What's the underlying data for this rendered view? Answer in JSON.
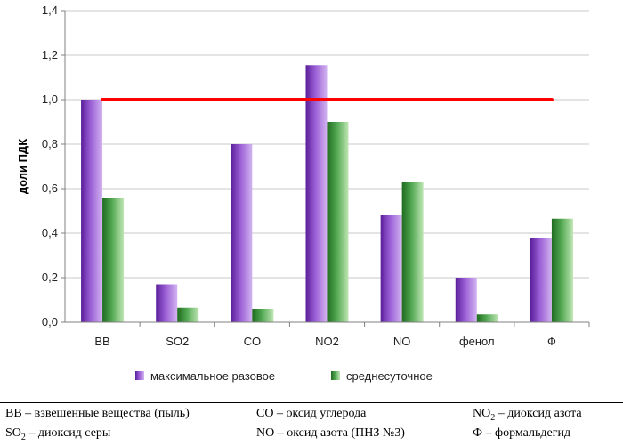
{
  "chart_data": {
    "type": "bar",
    "title": "",
    "xlabel": "",
    "ylabel": "доли ПДК",
    "ylim": [
      0,
      1.4
    ],
    "yticks": [
      "0,0",
      "0,2",
      "0,4",
      "0,6",
      "0,8",
      "1,0",
      "1,2",
      "1,4"
    ],
    "grid": "horizontal",
    "legend": "bottom",
    "categories": [
      "ВВ",
      "SO2",
      "CO",
      "NO2",
      "NO",
      "фенол",
      "Ф"
    ],
    "series": [
      {
        "name": "максимальное разовое",
        "values": [
          1.0,
          0.17,
          0.8,
          1.155,
          0.48,
          0.2,
          0.38
        ],
        "color": "#8040c0"
      },
      {
        "name": "среднесуточное",
        "values": [
          0.56,
          0.065,
          0.06,
          0.9,
          0.63,
          0.035,
          0.465
        ],
        "color": "#2e8b2e"
      }
    ],
    "reference_line": {
      "value": 1.0,
      "color": "#ff0000"
    }
  },
  "footnotes": {
    "row1": {
      "c1": "ВВ – взвешенные вещества (пыль)",
      "c2": "СО – оксид углерода",
      "c3_chem": "NO",
      "c3_sub": "2",
      "c3_rest": " – диоксид азота"
    },
    "row2": {
      "c1_chem": "SO",
      "c1_sub": "2",
      "c1_rest": " – диоксид серы",
      "c2": "NO – оксид азота (ПНЗ №3)",
      "c3": "Ф – формальдегид"
    }
  }
}
